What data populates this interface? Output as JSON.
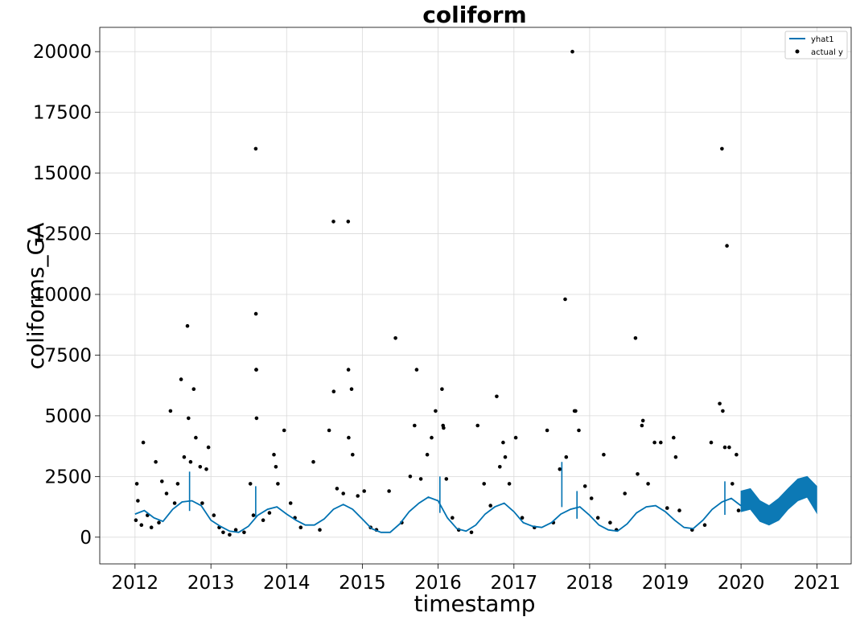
{
  "chart_data": {
    "type": "scatter",
    "title": "coliform",
    "xlabel": "timestamp",
    "ylabel": "coliforms_GA",
    "xlim": [
      "2011-07-15",
      "2021-06-15"
    ],
    "ylim": [
      -1100,
      21000
    ],
    "x_ticks": [
      "2012",
      "2013",
      "2014",
      "2015",
      "2016",
      "2017",
      "2018",
      "2019",
      "2020",
      "2021"
    ],
    "y_ticks": [
      0,
      2500,
      5000,
      7500,
      10000,
      12500,
      15000,
      17500,
      20000
    ],
    "y_tick_labels": [
      "0",
      "2500",
      "5000",
      "7500",
      "10000",
      "12500",
      "15000",
      "17500",
      "20000"
    ],
    "grid": true,
    "legend_position": "top-right",
    "series": [
      {
        "name": "yhat1",
        "kind": "line",
        "color": "#0072B2",
        "points": [
          [
            "2012-01-01",
            950
          ],
          [
            "2012-02-15",
            1100
          ],
          [
            "2012-04-01",
            800
          ],
          [
            "2012-05-15",
            650
          ],
          [
            "2012-07-01",
            1150
          ],
          [
            "2012-08-15",
            1450
          ],
          [
            "2012-10-01",
            1500
          ],
          [
            "2012-11-15",
            1300
          ],
          [
            "2013-01-01",
            700
          ],
          [
            "2013-02-15",
            450
          ],
          [
            "2013-04-01",
            250
          ],
          [
            "2013-05-15",
            200
          ],
          [
            "2013-07-01",
            450
          ],
          [
            "2013-08-15",
            900
          ],
          [
            "2013-10-01",
            1150
          ],
          [
            "2013-11-15",
            1250
          ],
          [
            "2014-01-01",
            950
          ],
          [
            "2014-02-15",
            700
          ],
          [
            "2014-04-01",
            500
          ],
          [
            "2014-05-15",
            500
          ],
          [
            "2014-07-01",
            750
          ],
          [
            "2014-08-15",
            1150
          ],
          [
            "2014-10-01",
            1350
          ],
          [
            "2014-11-15",
            1150
          ],
          [
            "2015-01-01",
            750
          ],
          [
            "2015-02-15",
            350
          ],
          [
            "2015-04-01",
            200
          ],
          [
            "2015-05-15",
            200
          ],
          [
            "2015-07-01",
            550
          ],
          [
            "2015-08-15",
            1050
          ],
          [
            "2015-10-01",
            1400
          ],
          [
            "2015-11-15",
            1650
          ],
          [
            "2016-01-01",
            1500
          ],
          [
            "2016-02-15",
            800
          ],
          [
            "2016-04-01",
            350
          ],
          [
            "2016-05-15",
            250
          ],
          [
            "2016-07-01",
            500
          ],
          [
            "2016-08-15",
            950
          ],
          [
            "2016-10-01",
            1250
          ],
          [
            "2016-11-15",
            1400
          ],
          [
            "2017-01-01",
            1050
          ],
          [
            "2017-02-15",
            600
          ],
          [
            "2017-04-01",
            450
          ],
          [
            "2017-05-15",
            400
          ],
          [
            "2017-07-01",
            600
          ],
          [
            "2017-08-15",
            950
          ],
          [
            "2017-10-01",
            1150
          ],
          [
            "2017-11-15",
            1250
          ],
          [
            "2018-01-01",
            900
          ],
          [
            "2018-02-15",
            500
          ],
          [
            "2018-04-01",
            300
          ],
          [
            "2018-05-15",
            250
          ],
          [
            "2018-07-01",
            550
          ],
          [
            "2018-08-15",
            1000
          ],
          [
            "2018-10-01",
            1250
          ],
          [
            "2018-11-15",
            1300
          ],
          [
            "2019-01-01",
            1050
          ],
          [
            "2019-02-15",
            700
          ],
          [
            "2019-04-01",
            400
          ],
          [
            "2019-05-15",
            350
          ],
          [
            "2019-07-01",
            700
          ],
          [
            "2019-08-15",
            1150
          ],
          [
            "2019-10-01",
            1450
          ],
          [
            "2019-11-15",
            1600
          ],
          [
            "2019-12-31",
            1300
          ]
        ],
        "spikes": [
          [
            "2012-09-20",
            2700
          ],
          [
            "2013-08-05",
            2100
          ],
          [
            "2016-01-10",
            2500
          ],
          [
            "2017-08-20",
            3100
          ],
          [
            "2017-11-01",
            1900
          ],
          [
            "2019-10-15",
            2300
          ]
        ]
      },
      {
        "name": "yhat1 (forecast band)",
        "kind": "band",
        "color": "#0072B2",
        "upper": [
          [
            "2020-01-01",
            1900
          ],
          [
            "2020-02-15",
            2000
          ],
          [
            "2020-04-01",
            1500
          ],
          [
            "2020-05-15",
            1300
          ],
          [
            "2020-07-01",
            1600
          ],
          [
            "2020-08-15",
            2000
          ],
          [
            "2020-10-01",
            2400
          ],
          [
            "2020-11-15",
            2500
          ],
          [
            "2020-12-31",
            2100
          ]
        ],
        "lower": [
          [
            "2020-01-01",
            1050
          ],
          [
            "2020-02-15",
            1150
          ],
          [
            "2020-04-01",
            650
          ],
          [
            "2020-05-15",
            500
          ],
          [
            "2020-07-01",
            700
          ],
          [
            "2020-08-15",
            1150
          ],
          [
            "2020-10-01",
            1500
          ],
          [
            "2020-11-15",
            1650
          ],
          [
            "2020-12-31",
            1000
          ]
        ]
      },
      {
        "name": "actual y",
        "kind": "points",
        "color": "#000000",
        "points": [
          [
            "2012-01-05",
            700
          ],
          [
            "2012-01-10",
            2200
          ],
          [
            "2012-01-15",
            1500
          ],
          [
            "2012-02-01",
            500
          ],
          [
            "2012-02-10",
            3900
          ],
          [
            "2012-03-01",
            900
          ],
          [
            "2012-03-20",
            400
          ],
          [
            "2012-04-10",
            3100
          ],
          [
            "2012-04-25",
            600
          ],
          [
            "2012-05-10",
            2300
          ],
          [
            "2012-06-01",
            1800
          ],
          [
            "2012-06-20",
            5200
          ],
          [
            "2012-07-10",
            1400
          ],
          [
            "2012-07-25",
            2200
          ],
          [
            "2012-08-10",
            6500
          ],
          [
            "2012-08-25",
            3300
          ],
          [
            "2012-09-10",
            8700
          ],
          [
            "2012-09-15",
            4900
          ],
          [
            "2012-09-25",
            3100
          ],
          [
            "2012-10-10",
            6100
          ],
          [
            "2012-10-20",
            4100
          ],
          [
            "2012-11-10",
            2900
          ],
          [
            "2012-11-20",
            1400
          ],
          [
            "2012-12-10",
            2800
          ],
          [
            "2012-12-20",
            3700
          ],
          [
            "2013-01-15",
            900
          ],
          [
            "2013-02-10",
            400
          ],
          [
            "2013-03-01",
            200
          ],
          [
            "2013-04-01",
            100
          ],
          [
            "2013-05-01",
            300
          ],
          [
            "2013-06-10",
            200
          ],
          [
            "2013-07-10",
            2200
          ],
          [
            "2013-07-25",
            900
          ],
          [
            "2013-08-05",
            16000
          ],
          [
            "2013-08-06",
            9200
          ],
          [
            "2013-08-07",
            6900
          ],
          [
            "2013-08-08",
            6900
          ],
          [
            "2013-08-09",
            4900
          ],
          [
            "2013-09-10",
            700
          ],
          [
            "2013-10-10",
            1000
          ],
          [
            "2013-11-01",
            3400
          ],
          [
            "2013-11-10",
            2900
          ],
          [
            "2013-11-20",
            2200
          ],
          [
            "2013-12-20",
            4400
          ],
          [
            "2014-01-20",
            1400
          ],
          [
            "2014-02-10",
            800
          ],
          [
            "2014-03-10",
            400
          ],
          [
            "2014-05-10",
            3100
          ],
          [
            "2014-06-10",
            300
          ],
          [
            "2014-07-25",
            4400
          ],
          [
            "2014-08-15",
            13000
          ],
          [
            "2014-08-16",
            6000
          ],
          [
            "2014-09-01",
            2000
          ],
          [
            "2014-10-01",
            1800
          ],
          [
            "2014-10-25",
            13000
          ],
          [
            "2014-10-26",
            6900
          ],
          [
            "2014-10-27",
            4100
          ],
          [
            "2014-11-10",
            6100
          ],
          [
            "2014-11-15",
            3400
          ],
          [
            "2014-12-10",
            1700
          ],
          [
            "2015-01-10",
            1900
          ],
          [
            "2015-02-10",
            400
          ],
          [
            "2015-03-10",
            300
          ],
          [
            "2015-05-10",
            1900
          ],
          [
            "2015-06-10",
            8200
          ],
          [
            "2015-07-10",
            600
          ],
          [
            "2015-08-20",
            2500
          ],
          [
            "2015-09-10",
            4600
          ],
          [
            "2015-09-20",
            6900
          ],
          [
            "2015-10-10",
            2400
          ],
          [
            "2015-11-10",
            3400
          ],
          [
            "2015-12-01",
            4100
          ],
          [
            "2015-12-20",
            5200
          ],
          [
            "2016-01-20",
            6100
          ],
          [
            "2016-01-25",
            4600
          ],
          [
            "2016-01-28",
            4500
          ],
          [
            "2016-02-10",
            2400
          ],
          [
            "2016-03-10",
            800
          ],
          [
            "2016-04-10",
            300
          ],
          [
            "2016-06-10",
            200
          ],
          [
            "2016-07-10",
            4600
          ],
          [
            "2016-08-10",
            2200
          ],
          [
            "2016-09-10",
            1300
          ],
          [
            "2016-10-10",
            5800
          ],
          [
            "2016-10-25",
            2900
          ],
          [
            "2016-11-10",
            3900
          ],
          [
            "2016-11-20",
            3300
          ],
          [
            "2016-12-10",
            2200
          ],
          [
            "2017-01-10",
            4100
          ],
          [
            "2017-02-10",
            800
          ],
          [
            "2017-04-10",
            400
          ],
          [
            "2017-06-10",
            4400
          ],
          [
            "2017-07-10",
            600
          ],
          [
            "2017-08-10",
            2800
          ],
          [
            "2017-09-05",
            9800
          ],
          [
            "2017-09-10",
            3300
          ],
          [
            "2017-10-10",
            20000
          ],
          [
            "2017-10-20",
            5200
          ],
          [
            "2017-10-25",
            5200
          ],
          [
            "2017-11-10",
            4400
          ],
          [
            "2017-12-10",
            2100
          ],
          [
            "2018-01-10",
            1600
          ],
          [
            "2018-02-10",
            800
          ],
          [
            "2018-03-10",
            3400
          ],
          [
            "2018-04-10",
            600
          ],
          [
            "2018-05-10",
            300
          ],
          [
            "2018-06-20",
            1800
          ],
          [
            "2018-08-10",
            8200
          ],
          [
            "2018-08-20",
            2600
          ],
          [
            "2018-09-10",
            4600
          ],
          [
            "2018-09-15",
            4800
          ],
          [
            "2018-10-10",
            2200
          ],
          [
            "2018-11-10",
            3900
          ],
          [
            "2018-12-10",
            3900
          ],
          [
            "2019-01-10",
            1200
          ],
          [
            "2019-02-10",
            4100
          ],
          [
            "2019-02-20",
            3300
          ],
          [
            "2019-03-10",
            1100
          ],
          [
            "2019-05-10",
            300
          ],
          [
            "2019-07-10",
            500
          ],
          [
            "2019-08-10",
            3900
          ],
          [
            "2019-09-20",
            5500
          ],
          [
            "2019-10-01",
            16000
          ],
          [
            "2019-10-05",
            5200
          ],
          [
            "2019-10-15",
            3700
          ],
          [
            "2019-10-25",
            12000
          ],
          [
            "2019-11-05",
            3700
          ],
          [
            "2019-11-20",
            2200
          ],
          [
            "2019-12-10",
            3400
          ],
          [
            "2019-12-20",
            1100
          ]
        ],
        "dense_baseline_note": ""
      }
    ]
  }
}
